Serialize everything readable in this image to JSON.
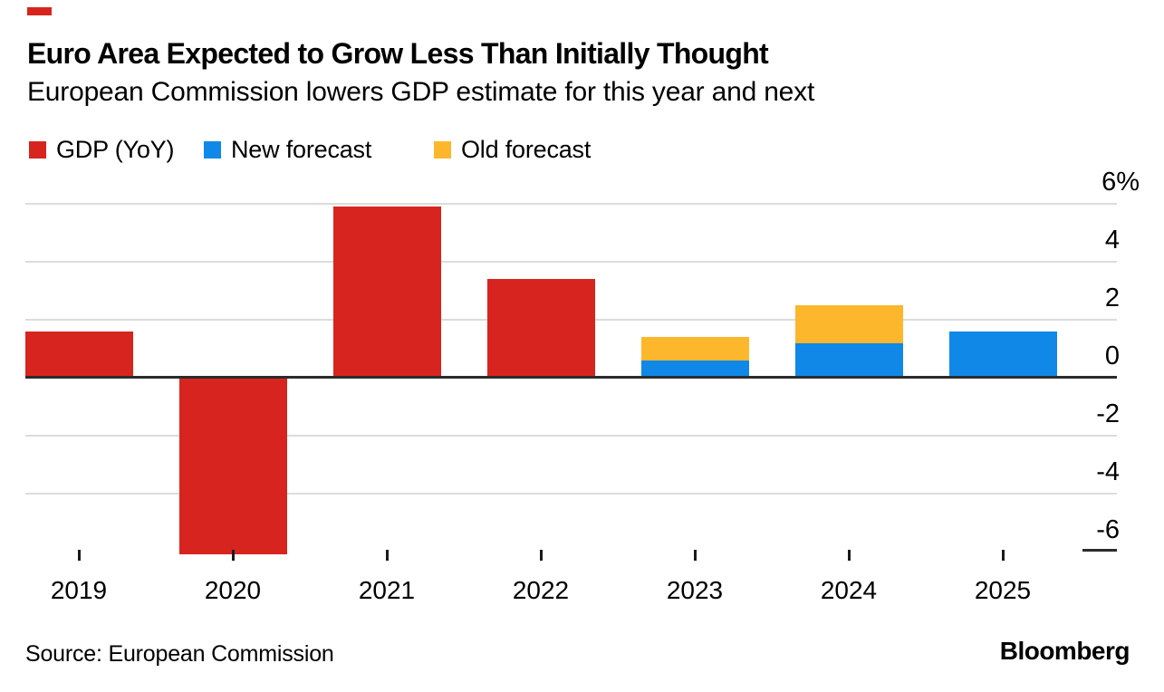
{
  "colors": {
    "accent_red": "#d8241f",
    "forecast_blue": "#0f88e8",
    "forecast_yellow": "#fdb72c",
    "gridline_gray": "#dcdcdc",
    "axis_dark": "#2b2b2b"
  },
  "header": {
    "title": "Euro Area Expected to Grow Less Than Initially Thought",
    "subtitle": "European Commission lowers GDP estimate for this year and next"
  },
  "legend": {
    "items": [
      {
        "label": "GDP (YoY)",
        "color": "#d8241f",
        "x": 32
      },
      {
        "label": "New forecast",
        "color": "#0f88e8",
        "x": 225
      },
      {
        "label": "Old forecast",
        "color": "#fdb72c",
        "x": 479
      }
    ]
  },
  "chart_data": {
    "type": "bar",
    "title": "Euro Area Expected to Grow Less Than Initially Thought",
    "subtitle": "European Commission lowers GDP estimate for this year and next",
    "categories": [
      "2019",
      "2020",
      "2021",
      "2022",
      "2023",
      "2024",
      "2025"
    ],
    "series": [
      {
        "name": "GDP (YoY)",
        "color": "#d8241f",
        "values": [
          1.6,
          -6.1,
          5.9,
          3.4,
          null,
          null,
          null
        ]
      },
      {
        "name": "New forecast",
        "color": "#0f88e8",
        "values": [
          null,
          null,
          null,
          null,
          0.6,
          1.2,
          1.6
        ]
      },
      {
        "name": "Old forecast",
        "color": "#fdb72c",
        "stacking": "stacked-on-new-forecast",
        "values": [
          null,
          null,
          null,
          null,
          0.8,
          1.3,
          null
        ]
      }
    ],
    "y_axis": {
      "side": "right",
      "unit": "%",
      "ticks": [
        6,
        4,
        2,
        0,
        -2,
        -4,
        -6
      ],
      "tick_labels": [
        "6%",
        "4",
        "2",
        "0",
        "-2",
        "-4",
        "-6"
      ]
    },
    "ylim": [
      -6.9,
      6.9
    ],
    "grid": true,
    "legend_position": "top",
    "baseline": 0
  },
  "footer": {
    "source": "Source: European Commission",
    "brand": "Bloomberg"
  }
}
